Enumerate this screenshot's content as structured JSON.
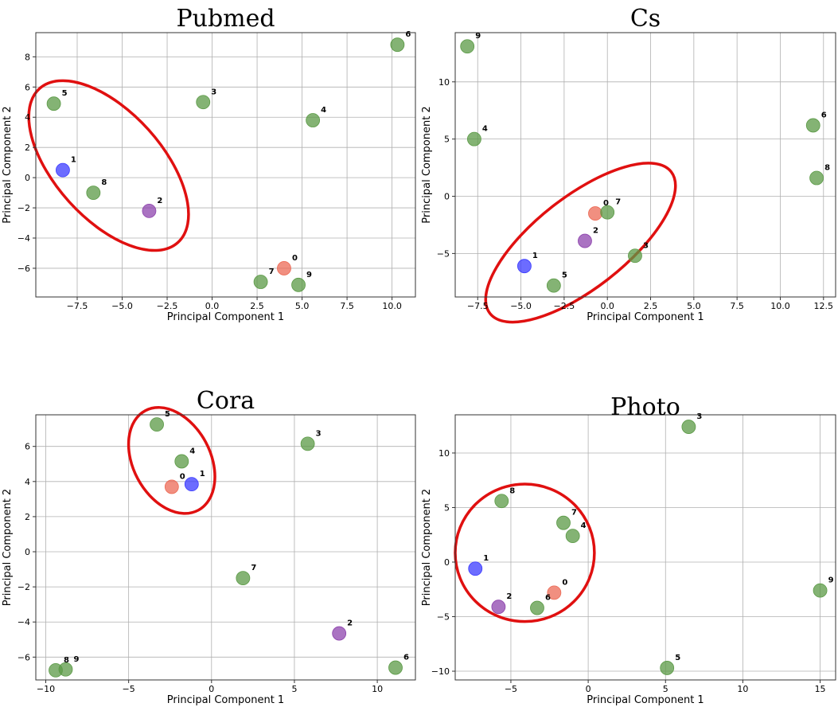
{
  "colors": {
    "green": "#5b9a46",
    "blue": "#3b3bff",
    "purple": "#8e44ad",
    "red_point": "#ec6a55",
    "ellipse": "#e01010",
    "grid": "#b0b0b0"
  },
  "chart_data": [
    {
      "type": "scatter",
      "title": "Pubmed",
      "xlabel": "Principal Component 1",
      "ylabel": "Principal Component 2",
      "xlim": [
        -9.8,
        11.3
      ],
      "ylim": [
        -7.9,
        9.6
      ],
      "xticks": [
        -7.5,
        -5.0,
        -2.5,
        0.0,
        2.5,
        5.0,
        7.5,
        10.0
      ],
      "xtick_labels": [
        "−7.5",
        "−5.0",
        "−2.5",
        "0.0",
        "2.5",
        "5.0",
        "7.5",
        "10.0"
      ],
      "yticks": [
        -6,
        -4,
        -2,
        0,
        2,
        4,
        6,
        8
      ],
      "ytick_labels": [
        "−6",
        "−4",
        "−2",
        "0",
        "2",
        "4",
        "6",
        "8"
      ],
      "grid": true,
      "points": [
        {
          "label": "0",
          "x": 4.0,
          "y": -6.0,
          "color": "red"
        },
        {
          "label": "1",
          "x": -8.3,
          "y": 0.5,
          "color": "blue"
        },
        {
          "label": "2",
          "x": -3.5,
          "y": -2.2,
          "color": "purple"
        },
        {
          "label": "3",
          "x": -0.5,
          "y": 5.0,
          "color": "green"
        },
        {
          "label": "4",
          "x": 5.6,
          "y": 3.8,
          "color": "green"
        },
        {
          "label": "5",
          "x": -8.8,
          "y": 4.9,
          "color": "green"
        },
        {
          "label": "6",
          "x": 10.3,
          "y": 8.8,
          "color": "green"
        },
        {
          "label": "7",
          "x": 2.7,
          "y": -6.9,
          "color": "green"
        },
        {
          "label": "8",
          "x": -6.6,
          "y": -1.0,
          "color": "green"
        },
        {
          "label": "9",
          "x": 4.8,
          "y": -7.1,
          "color": "green"
        }
      ],
      "highlight_ellipse": {
        "cx": -5.75,
        "cy": 0.8,
        "rx": 5.75,
        "ry": 3.55,
        "rotation_deg": 48
      }
    },
    {
      "type": "scatter",
      "title": "Cs",
      "xlabel": "Principal Component 1",
      "ylabel": "Principal Component 2",
      "xlim": [
        -8.8,
        13.2
      ],
      "ylim": [
        -8.8,
        14.3
      ],
      "xticks": [
        -7.5,
        -5.0,
        -2.5,
        0.0,
        2.5,
        5.0,
        7.5,
        10.0,
        12.5
      ],
      "xtick_labels": [
        "−7.5",
        "−5.0",
        "−2.5",
        "0.0",
        "2.5",
        "5.0",
        "7.5",
        "10.0",
        "12.5"
      ],
      "yticks": [
        -5,
        0,
        5,
        10
      ],
      "ytick_labels": [
        "−5",
        "0",
        "5",
        "10"
      ],
      "grid": true,
      "points": [
        {
          "label": "0",
          "x": -0.7,
          "y": -1.5,
          "color": "red"
        },
        {
          "label": "1",
          "x": -4.8,
          "y": -6.1,
          "color": "blue"
        },
        {
          "label": "2",
          "x": -1.3,
          "y": -3.9,
          "color": "purple"
        },
        {
          "label": "3",
          "x": 1.6,
          "y": -5.2,
          "color": "green"
        },
        {
          "label": "4",
          "x": -7.7,
          "y": 5.0,
          "color": "green"
        },
        {
          "label": "5",
          "x": -3.1,
          "y": -7.8,
          "color": "green"
        },
        {
          "label": "6",
          "x": 11.9,
          "y": 6.2,
          "color": "green"
        },
        {
          "label": "7",
          "x": 0.0,
          "y": -1.4,
          "color": "green"
        },
        {
          "label": "8",
          "x": 12.1,
          "y": 1.6,
          "color": "green"
        },
        {
          "label": "9",
          "x": -8.1,
          "y": 13.1,
          "color": "green"
        }
      ],
      "highlight_ellipse": {
        "cx": -1.55,
        "cy": -4.05,
        "rx": 6.65,
        "ry": 4.0,
        "rotation_deg": -38
      }
    },
    {
      "type": "scatter",
      "title": "Cora",
      "xlabel": "Principal Component 1",
      "ylabel": "Principal Component 2",
      "xlim": [
        -10.6,
        12.3
      ],
      "ylim": [
        -7.3,
        7.8
      ],
      "xticks": [
        -10,
        -5,
        0,
        5,
        10
      ],
      "xtick_labels": [
        "−10",
        "−5",
        "0",
        "5",
        "10"
      ],
      "yticks": [
        -6,
        -4,
        -2,
        0,
        2,
        4,
        6
      ],
      "ytick_labels": [
        "−6",
        "−4",
        "−2",
        "0",
        "2",
        "4",
        "6"
      ],
      "grid": true,
      "points": [
        {
          "label": "0",
          "x": -2.4,
          "y": 3.7,
          "color": "red"
        },
        {
          "label": "1",
          "x": -1.2,
          "y": 3.85,
          "color": "blue"
        },
        {
          "label": "2",
          "x": 7.7,
          "y": -4.65,
          "color": "purple"
        },
        {
          "label": "3",
          "x": 5.8,
          "y": 6.15,
          "color": "green"
        },
        {
          "label": "4",
          "x": -1.8,
          "y": 5.15,
          "color": "green"
        },
        {
          "label": "5",
          "x": -3.3,
          "y": 7.25,
          "color": "green"
        },
        {
          "label": "6",
          "x": 11.1,
          "y": -6.6,
          "color": "green"
        },
        {
          "label": "7",
          "x": 1.9,
          "y": -1.5,
          "color": "green"
        },
        {
          "label": "8",
          "x": -9.4,
          "y": -6.75,
          "color": "green"
        },
        {
          "label": "9",
          "x": -8.8,
          "y": -6.7,
          "color": "green"
        }
      ],
      "highlight_ellipse": {
        "cx": -2.4,
        "cy": 5.2,
        "rx": 3.4,
        "ry": 2.2,
        "rotation_deg": 62
      }
    },
    {
      "type": "scatter",
      "title": "Photo",
      "xlabel": "Principal Component 1",
      "ylabel": "Principal Component 2",
      "xlim": [
        -8.6,
        16.0
      ],
      "ylim": [
        -10.8,
        13.5
      ],
      "xticks": [
        -5,
        0,
        5,
        10,
        15
      ],
      "xtick_labels": [
        "−5",
        "0",
        "5",
        "10",
        "15"
      ],
      "yticks": [
        -10,
        -5,
        0,
        5,
        10
      ],
      "ytick_labels": [
        "−10",
        "−5",
        "0",
        "5",
        "10"
      ],
      "grid": true,
      "points": [
        {
          "label": "0",
          "x": -2.2,
          "y": -2.8,
          "color": "red"
        },
        {
          "label": "1",
          "x": -7.3,
          "y": -0.6,
          "color": "blue"
        },
        {
          "label": "2",
          "x": -5.8,
          "y": -4.1,
          "color": "purple"
        },
        {
          "label": "3",
          "x": 6.5,
          "y": 12.4,
          "color": "green"
        },
        {
          "label": "4",
          "x": -1.0,
          "y": 2.4,
          "color": "green"
        },
        {
          "label": "5",
          "x": 5.1,
          "y": -9.7,
          "color": "green"
        },
        {
          "label": "6",
          "x": -3.3,
          "y": -4.2,
          "color": "green"
        },
        {
          "label": "7",
          "x": -1.6,
          "y": 3.6,
          "color": "green"
        },
        {
          "label": "8",
          "x": -5.6,
          "y": 5.6,
          "color": "green"
        },
        {
          "label": "9",
          "x": 15.0,
          "y": -2.6,
          "color": "green"
        }
      ],
      "highlight_ellipse": {
        "cx": -4.1,
        "cy": 0.85,
        "rx": 4.5,
        "ry": 6.3,
        "rotation_deg": 0
      }
    }
  ]
}
